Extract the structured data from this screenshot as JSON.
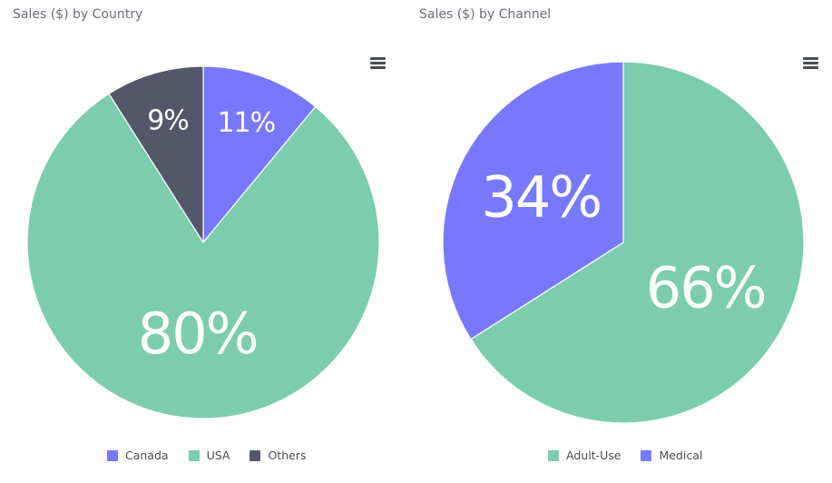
{
  "chart_data": [
    {
      "type": "pie",
      "title": "Sales ($) by Country",
      "slices": [
        {
          "label": "Canada",
          "value": 11,
          "display": "11%",
          "color": "#7878ff"
        },
        {
          "label": "USA",
          "value": 80,
          "display": "80%",
          "color": "#7bcdae"
        },
        {
          "label": "Others",
          "value": 9,
          "display": "9%",
          "color": "#535769"
        }
      ],
      "legend": [
        "Canada",
        "USA",
        "Others"
      ],
      "legend_position": "bottom",
      "menu_icon": "hamburger-menu-icon"
    },
    {
      "type": "pie",
      "title": "Sales ($) by Channel",
      "slices": [
        {
          "label": "Adult-Use",
          "value": 66,
          "display": "66%",
          "color": "#7bcdae"
        },
        {
          "label": "Medical",
          "value": 34,
          "display": "34%",
          "color": "#7878ff"
        }
      ],
      "legend": [
        "Adult-Use",
        "Medical"
      ],
      "legend_position": "bottom",
      "menu_icon": "hamburger-menu-icon"
    }
  ]
}
